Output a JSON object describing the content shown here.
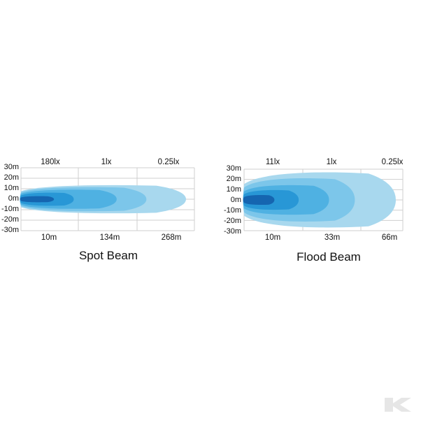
{
  "charts": [
    {
      "id": "spot",
      "title": "Spot Beam",
      "lux_labels": [
        "180lx",
        "1lx",
        "0.25lx"
      ],
      "distance_labels": [
        "10m",
        "134m",
        "268m"
      ],
      "y_tick_labels": [
        "30m",
        "20m",
        "10m",
        "0m",
        "-10m",
        "-20m",
        "-30m"
      ],
      "beam_length_fractions": [
        1.0,
        0.76,
        0.58,
        0.32,
        0.2
      ],
      "beam_half_width_m": [
        14,
        12,
        9.5,
        6.5,
        3
      ]
    },
    {
      "id": "flood",
      "title": "Flood  Beam",
      "lux_labels": [
        "11lx",
        "1lx",
        "0.25lx"
      ],
      "distance_labels": [
        "10m",
        "33m",
        "66m"
      ],
      "y_tick_labels": [
        "30m",
        "20m",
        "10m",
        "0m",
        "-10m",
        "-20m",
        "-30m"
      ],
      "beam_length_fractions": [
        1.0,
        0.73,
        0.56,
        0.36,
        0.2
      ],
      "beam_half_width_m": [
        28,
        22,
        15,
        10,
        5
      ]
    }
  ],
  "colors": {
    "grid": "#cfcfcf",
    "beam_layers": [
      "#a8d8ee",
      "#7cc6ea",
      "#4fb1e2",
      "#2897d6",
      "#1565b0"
    ]
  },
  "logo": {
    "icon": "k-logo-icon"
  }
}
